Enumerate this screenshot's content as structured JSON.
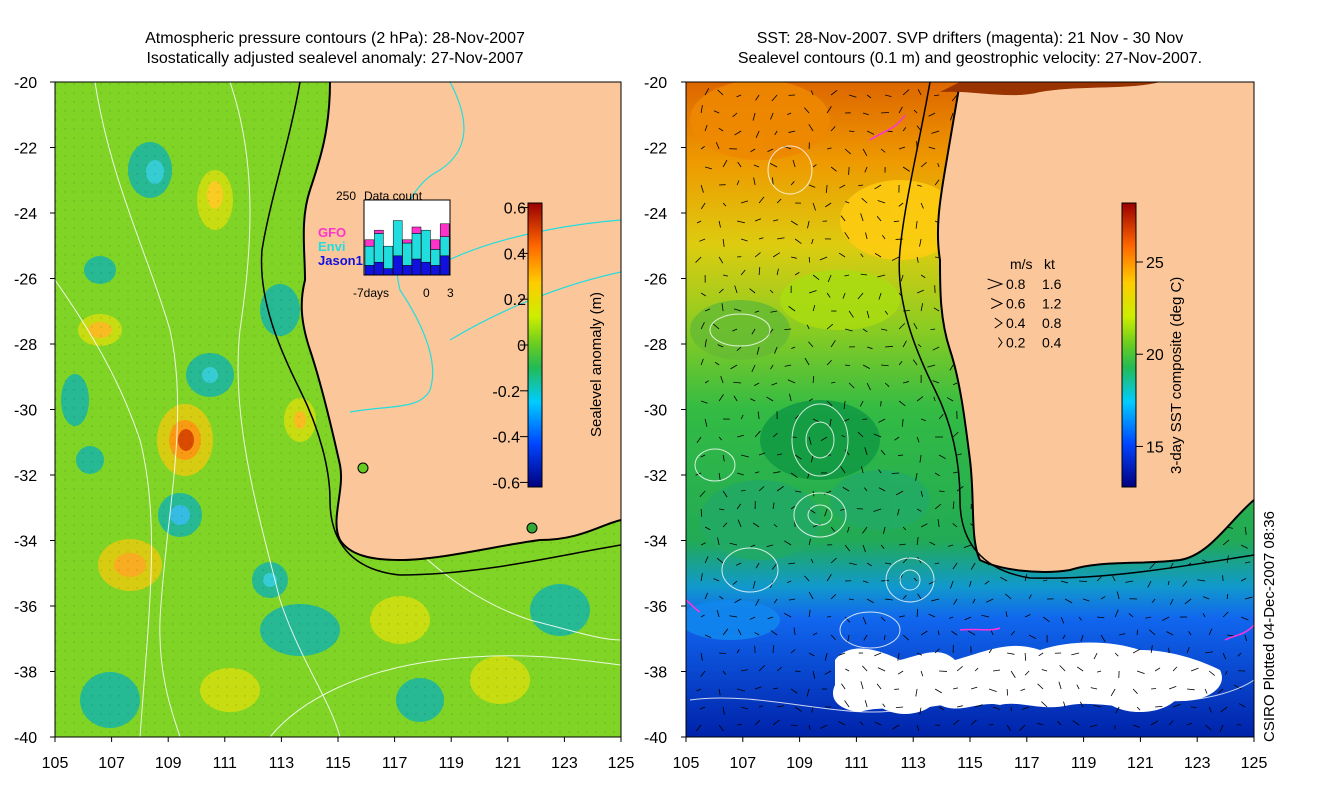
{
  "left_panel": {
    "title_line1": "Atmospheric pressure contours (2 hPa): 28-Nov-2007",
    "title_line2": "Isostatically adjusted sealevel anomaly: 27-Nov-2007",
    "colorbar_label": "Sealevel anomaly (m)",
    "colorbar_ticks": [
      "0.6",
      "0.4",
      "0.2",
      "0",
      "-0.2",
      "-0.4",
      "-0.6"
    ],
    "inset": {
      "ymax_label": "250",
      "title": "Data count",
      "x_labels": [
        "-7days",
        "0",
        "3"
      ],
      "legend": [
        {
          "name": "GFO",
          "color": "#ff33cc"
        },
        {
          "name": "Envi",
          "color": "#22dddd"
        },
        {
          "name": "Jason1",
          "color": "#1111dd"
        }
      ]
    }
  },
  "right_panel": {
    "title_line1": "SST: 28-Nov-2007. SVP drifters (magenta): 21 Nov - 30 Nov",
    "title_line2": "Sealevel contours (0.1 m) and geostrophic velocity: 27-Nov-2007.",
    "colorbar_label": "3-day SST composite (deg C)",
    "colorbar_ticks": [
      "25",
      "20",
      "15"
    ],
    "speed_legend": {
      "header_ms": "m/s",
      "header_kt": "kt",
      "rows": [
        {
          "ms": "0.8",
          "kt": "1.6"
        },
        {
          "ms": "0.6",
          "kt": "1.2"
        },
        {
          "ms": "0.4",
          "kt": "0.8"
        },
        {
          "ms": "0.2",
          "kt": "0.4"
        }
      ]
    }
  },
  "axes": {
    "lat_labels": [
      "-20",
      "-22",
      "-24",
      "-26",
      "-28",
      "-30",
      "-32",
      "-34",
      "-36",
      "-38",
      "-40"
    ],
    "lon_labels": [
      "105",
      "107",
      "109",
      "111",
      "113",
      "115",
      "117",
      "119",
      "121",
      "123",
      "125"
    ]
  },
  "credit": "CSIRO Plotted 04-Dec-2007 08:36"
}
